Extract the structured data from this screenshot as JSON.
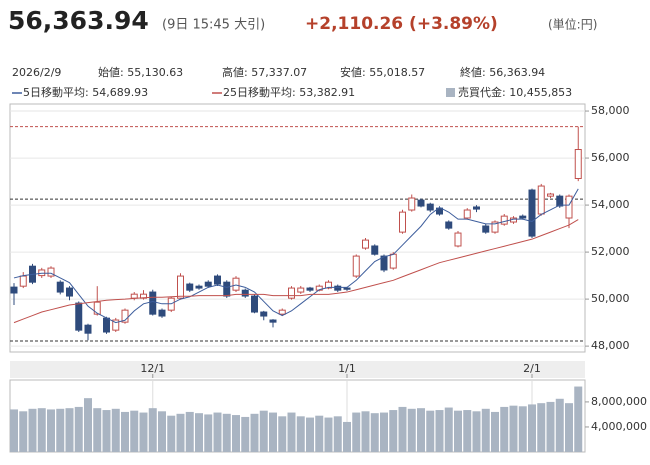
{
  "header": {
    "price": "56,363.94",
    "time": "(9日 15:45 大引)",
    "change": "+2,110.26 (+3.89%)",
    "unit": "(単位:円)"
  },
  "chart_data": {
    "type": "candlestick",
    "date": "2026/2/9",
    "summary": [
      "始値: 55,130.63",
      "高値: 57,337.07",
      "安値: 55,018.57",
      "終値: 56,363.94"
    ],
    "categories": [
      null,
      null,
      null,
      null,
      null,
      null,
      null,
      null,
      null,
      null,
      null,
      null,
      null,
      null,
      null,
      "12/1",
      null,
      null,
      null,
      null,
      null,
      null,
      null,
      null,
      null,
      null,
      null,
      null,
      null,
      null,
      null,
      null,
      null,
      null,
      null,
      null,
      "1/1",
      null,
      null,
      null,
      null,
      null,
      null,
      null,
      null,
      null,
      null,
      null,
      null,
      null,
      null,
      null,
      null,
      null,
      null,
      null,
      "2/1",
      null,
      null,
      null,
      null,
      null
    ],
    "open": [
      50510,
      50550,
      51400,
      51000,
      50980,
      50720,
      50470,
      49830,
      48890,
      49360,
      49190,
      48680,
      49020,
      50040,
      50040,
      50300,
      49530,
      49530,
      50040,
      50640,
      50550,
      50720,
      50980,
      50720,
      50380,
      50380,
      50130,
      49450,
      49110,
      49360,
      50040,
      50300,
      50470,
      50380,
      50470,
      50550,
      50470,
      50980,
      52170,
      52260,
      51830,
      51320,
      52850,
      53790,
      54210,
      54040,
      53870,
      53280,
      52260,
      53450,
      53920,
      53110,
      52850,
      53190,
      53280,
      53530,
      54640,
      53620,
      54380,
      54380,
      53450,
      55130.63
    ],
    "high": [
      50680,
      51150,
      51500,
      51330,
      51400,
      50800,
      50550,
      49900,
      48950,
      50550,
      49250,
      49200,
      49600,
      50300,
      50380,
      50400,
      49600,
      50100,
      51100,
      50700,
      50620,
      50800,
      51050,
      50800,
      50980,
      50450,
      50200,
      49500,
      49150,
      49600,
      50550,
      50560,
      50520,
      50620,
      50800,
      50620,
      50520,
      51900,
      52600,
      52330,
      51900,
      52000,
      53800,
      54450,
      54280,
      54100,
      53950,
      53350,
      52900,
      53870,
      54000,
      53200,
      53350,
      53620,
      53530,
      53600,
      54700,
      54900,
      54520,
      54450,
      54450,
      57337.07
    ],
    "low": [
      49750,
      50470,
      50640,
      50900,
      50900,
      50200,
      49950,
      48600,
      48250,
      49300,
      48520,
      48600,
      48950,
      49950,
      49980,
      49300,
      49200,
      49450,
      49980,
      50300,
      50400,
      50480,
      50560,
      50050,
      50300,
      50050,
      49400,
      49100,
      48800,
      49280,
      49980,
      50220,
      50300,
      50330,
      50420,
      50300,
      50350,
      50900,
      52100,
      51850,
      51150,
      51250,
      52780,
      53720,
      53900,
      53700,
      53550,
      52950,
      52200,
      53380,
      53700,
      52780,
      52780,
      53120,
      53200,
      53380,
      52600,
      53550,
      54300,
      53880,
      53020,
      55018.57
    ],
    "close": [
      50260,
      50980,
      50720,
      51240,
      51320,
      50300,
      50130,
      48680,
      48550,
      49870,
      48600,
      49110,
      49530,
      50210,
      50210,
      49360,
      49280,
      50040,
      50980,
      50380,
      50470,
      50550,
      50640,
      50130,
      50890,
      50130,
      49450,
      49280,
      49020,
      49530,
      50470,
      50470,
      50380,
      50550,
      50720,
      50380,
      50420,
      51830,
      52510,
      51910,
      51240,
      51910,
      53700,
      54300,
      53960,
      53790,
      53620,
      53020,
      52810,
      53790,
      53830,
      52850,
      53280,
      53530,
      53450,
      53450,
      52680,
      54810,
      54470,
      53960,
      54380,
      56363.94
    ],
    "up_color": "#c0504d",
    "down_color": "#2f4b7c",
    "series": [
      {
        "name": "5日移動平均: 54,689.93",
        "color": "#3d5d9c",
        "values": [
          50900,
          51000,
          51050,
          51100,
          51100,
          50900,
          50700,
          50200,
          49700,
          49400,
          49200,
          49000,
          49100,
          49500,
          49800,
          49900,
          49800,
          49800,
          50000,
          50100,
          50300,
          50500,
          50600,
          50500,
          50600,
          50500,
          50300,
          49900,
          49500,
          49300,
          49500,
          49800,
          50100,
          50400,
          50500,
          50500,
          50500,
          50800,
          51200,
          51600,
          51800,
          51900,
          52300,
          52700,
          53100,
          53600,
          53900,
          53700,
          53400,
          53400,
          53300,
          53200,
          53200,
          53300,
          53400,
          53400,
          53300,
          53600,
          53800,
          54000,
          54000,
          54689.93
        ]
      },
      {
        "name": "25日移動平均: 53,382.91",
        "color": "#c0504d",
        "values": [
          49000,
          49150,
          49300,
          49450,
          49550,
          49650,
          49750,
          49800,
          49850,
          49900,
          49950,
          49980,
          50000,
          50030,
          50060,
          50080,
          50080,
          50100,
          50120,
          50120,
          50150,
          50150,
          50150,
          50150,
          50200,
          50200,
          50200,
          50200,
          50150,
          50150,
          50150,
          50150,
          50200,
          50200,
          50200,
          50250,
          50300,
          50400,
          50500,
          50600,
          50700,
          50800,
          50950,
          51100,
          51250,
          51400,
          51550,
          51650,
          51750,
          51850,
          51950,
          52050,
          52150,
          52250,
          52350,
          52450,
          52550,
          52700,
          52850,
          53000,
          53150,
          53382.91
        ]
      }
    ],
    "ylim": [
      47750,
      58300
    ],
    "yticks": [
      {
        "value": 48000,
        "label": "48,000"
      },
      {
        "value": 50000,
        "label": "50,000"
      },
      {
        "value": 52000,
        "label": "52,000"
      },
      {
        "value": 54000,
        "label": "54,000"
      },
      {
        "value": 56000,
        "label": "56,000"
      },
      {
        "value": 58000,
        "label": "58,000"
      }
    ],
    "reference_lines": [
      {
        "value": 57337.07,
        "color": "#c0504d"
      },
      {
        "value": 54253.68,
        "color": "#333333"
      },
      {
        "value": 48220,
        "color": "#333333"
      }
    ],
    "volume": {
      "name": "売買代金: 10,455,853",
      "color": "#a9b4c2",
      "values": [
        6800000,
        6500000,
        6900000,
        7000000,
        6800000,
        6900000,
        7000000,
        7200000,
        8600000,
        7000000,
        6700000,
        6900000,
        6400000,
        6600000,
        6300000,
        7000000,
        6500000,
        5800000,
        6100000,
        6400000,
        6200000,
        6000000,
        6300000,
        6100000,
        5900000,
        5600000,
        6100000,
        6600000,
        6300000,
        5700000,
        6300000,
        5700000,
        5500000,
        5800000,
        5500000,
        5700000,
        4800000,
        6300000,
        6500000,
        6200000,
        6300000,
        6700000,
        7200000,
        6900000,
        7000000,
        6600000,
        6700000,
        7100000,
        6600000,
        6700000,
        6500000,
        6900000,
        6400000,
        7200000,
        7400000,
        7300000,
        7600000,
        7800000,
        8000000,
        8500000,
        7800000,
        10455853
      ],
      "ylim": [
        0,
        11500000
      ],
      "yticks": [
        {
          "value": 4000000,
          "label": "4,000,000"
        },
        {
          "value": 8000000,
          "label": "8,000,000"
        }
      ]
    }
  }
}
